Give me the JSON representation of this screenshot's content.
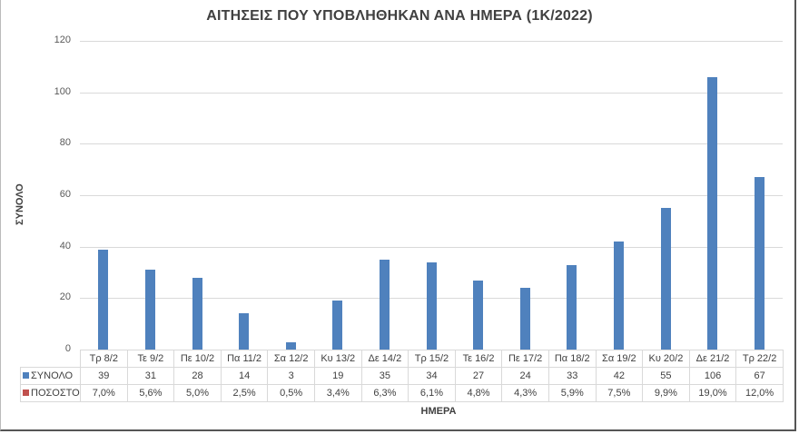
{
  "chart_data": {
    "type": "bar",
    "title": "ΑΙΤΗΣΕΙΣ ΠΟΥ ΥΠΟΒΛΗΘΗΚΑΝ ΑΝΑ ΗΜΕΡΑ (1Κ/2022)",
    "xlabel": "ΗΜΕΡΑ",
    "ylabel": "ΣΥΝΟΛΟ",
    "ylim": [
      0,
      120
    ],
    "yticks": [
      0,
      20,
      40,
      60,
      80,
      100,
      120
    ],
    "grid": true,
    "legend_position": "data-table",
    "categories": [
      "Τρ 8/2",
      "Τε 9/2",
      "Πε 10/2",
      "Πα 11/2",
      "Σα 12/2",
      "Κυ 13/2",
      "Δε 14/2",
      "Τρ 15/2",
      "Τε 16/2",
      "Πε 17/2",
      "Πα 18/2",
      "Σα 19/2",
      "Κυ 20/2",
      "Δε 21/2",
      "Τρ 22/2"
    ],
    "series": [
      {
        "name": "ΣΥΝΟΛΟ",
        "color": "#4f81bd",
        "values": [
          39,
          31,
          28,
          14,
          3,
          19,
          35,
          34,
          27,
          24,
          33,
          42,
          55,
          106,
          67
        ]
      },
      {
        "name": "ΠΟΣΟΣΤΟ",
        "color": "#c0504d",
        "values": [
          "7,0%",
          "5,6%",
          "5,0%",
          "2,5%",
          "0,5%",
          "3,4%",
          "6,3%",
          "6,1%",
          "4,8%",
          "4,3%",
          "5,9%",
          "7,5%",
          "9,9%",
          "19,0%",
          "12,0%"
        ]
      }
    ]
  }
}
